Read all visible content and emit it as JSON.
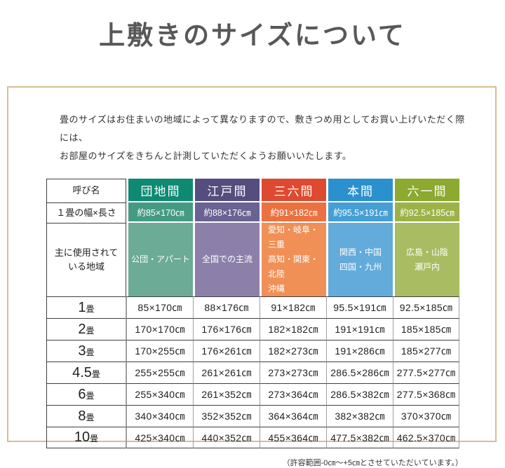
{
  "page": {
    "title": "上敷きのサイズについて",
    "intro_line1": "畳のサイズはお住まいの地域によって異なりますので、敷きつめ用としてお買い上げいただく際には、",
    "intro_line2": "お部屋のサイズをきちんと計測していただくようお願いいたします。",
    "footnote": "（許容範囲-0㎝～+5㎝とさせていただいています。）"
  },
  "table": {
    "corner_label": "呼び名",
    "width_row_label": "１畳の幅×長さ",
    "region_row_label": "主に使用されて\nいる地域",
    "size_unit": "畳",
    "columns": [
      {
        "name": "団地間",
        "header_color": "#0e8a73",
        "width_color": "#459a82",
        "region_color": "#6cab95",
        "width": "約85×170㎝",
        "region": "公団・アパート",
        "region_align": "center"
      },
      {
        "name": "江戸間",
        "header_color": "#554d7f",
        "width_color": "#6a6292",
        "region_color": "#8c80aa",
        "width": "約88×176㎝",
        "region": "全国での主流",
        "region_align": "center"
      },
      {
        "name": "三六間",
        "header_color": "#de4a2f",
        "width_color": "#eb7240",
        "region_color": "#f09057",
        "width": "約91×182㎝",
        "region": "愛知・岐阜・三重\n高知・関東・北陸\n沖縄",
        "region_align": "left"
      },
      {
        "name": "本間",
        "header_color": "#2b90ce",
        "width_color": "#459fd5",
        "region_color": "#63abdb",
        "width": "約95.5×191㎝",
        "region": "関西・中国\n四国・九州",
        "region_align": "center"
      },
      {
        "name": "六一間",
        "header_color": "#8ca930",
        "width_color": "#9cb247",
        "region_color": "#a9bc62",
        "width": "約92.5×185㎝",
        "region": "広島・山陰\n瀬戸内",
        "region_align": "center"
      }
    ],
    "size_rows": [
      {
        "label_num": "1",
        "values": [
          "85×170㎝",
          "88×176㎝",
          "91×182㎝",
          "95.5×191㎝",
          "92.5×185㎝"
        ]
      },
      {
        "label_num": "2",
        "values": [
          "170×170㎝",
          "176×176㎝",
          "182×182㎝",
          "191×191㎝",
          "185×185㎝"
        ]
      },
      {
        "label_num": "3",
        "values": [
          "170×255㎝",
          "176×261㎝",
          "182×273㎝",
          "191×286㎝",
          "185×277㎝"
        ]
      },
      {
        "label_num": "4.5",
        "values": [
          "255×255㎝",
          "261×261㎝",
          "273×273㎝",
          "286.5×286㎝",
          "277.5×277㎝"
        ]
      },
      {
        "label_num": "6",
        "values": [
          "255×340㎝",
          "261×352㎝",
          "273×364㎝",
          "286.5×382㎝",
          "277.5×368㎝"
        ]
      },
      {
        "label_num": "8",
        "values": [
          "340×340㎝",
          "352×352㎝",
          "364×364㎝",
          "382×382㎝",
          "370×370㎝"
        ]
      },
      {
        "label_num": "10",
        "values": [
          "425×340㎝",
          "440×352㎝",
          "455×364㎝",
          "477.5×382㎝",
          "462.5×370㎝"
        ]
      }
    ]
  }
}
